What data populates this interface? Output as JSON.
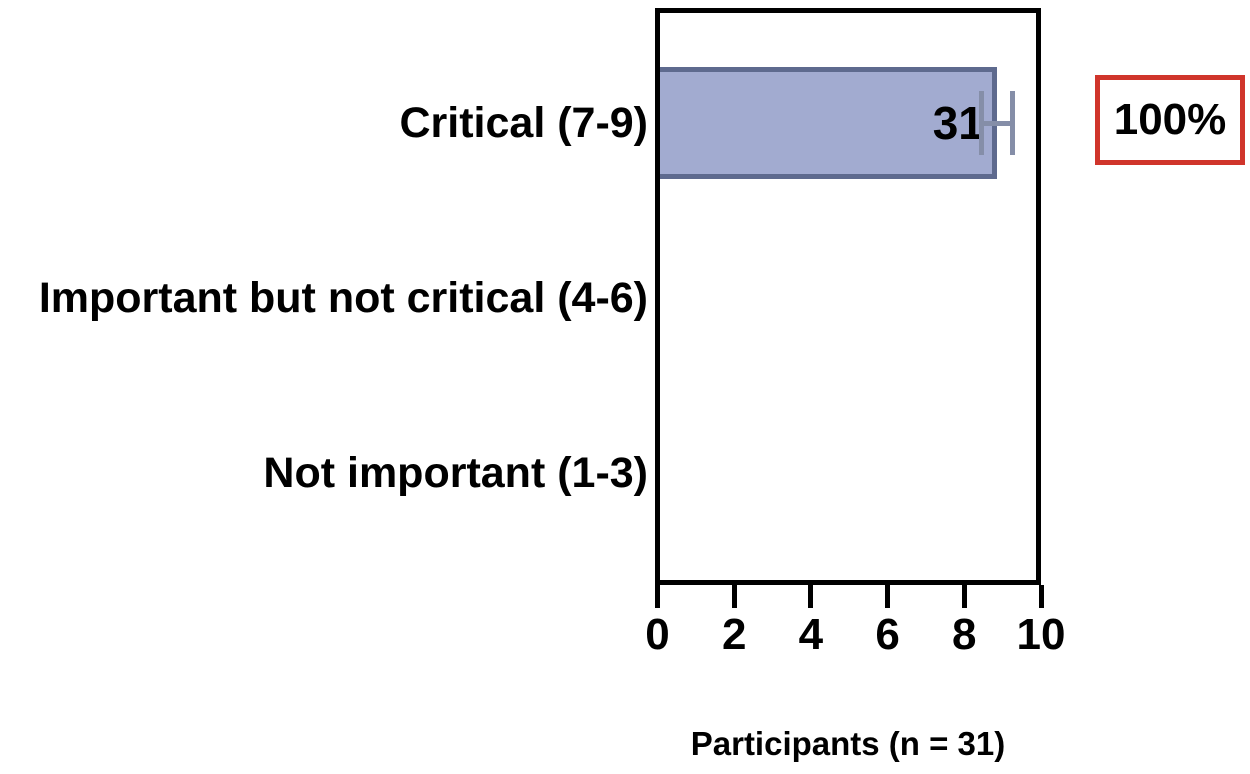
{
  "chart_data": {
    "type": "bar",
    "orientation": "horizontal",
    "categories": [
      "Critical (7-9)",
      "Important but not critical (4-6)",
      "Not important (1-3)"
    ],
    "values": [
      8.85,
      0,
      0
    ],
    "bar_labels": [
      "31",
      "",
      ""
    ],
    "error_bars": [
      {
        "category": "Critical (7-9)",
        "index": 0,
        "low": 8.45,
        "high": 9.25
      }
    ],
    "xlabel": "Participants (n = 31)",
    "xlim": [
      0,
      10
    ],
    "xticks": [
      0,
      2,
      4,
      6,
      8,
      10
    ],
    "grid": false,
    "legend": null,
    "annotations": [
      {
        "text": "100%",
        "row": "Critical (7-9)",
        "style": "red-outlined-box"
      }
    ],
    "colors": {
      "bar_fill": "#a2abd0",
      "bar_border": "#5e6a8e",
      "error_bar": "#858ea8",
      "axis": "#000000",
      "annotation_border": "#d0352b",
      "text": "#000000",
      "background": "#ffffff"
    }
  }
}
